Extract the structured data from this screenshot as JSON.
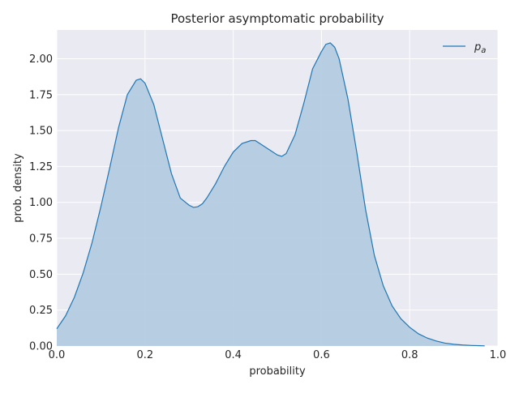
{
  "chart_data": {
    "type": "area",
    "title": "Posterior asymptomatic probability",
    "xlabel": "probability",
    "ylabel": "prob. density",
    "xlim": [
      0.0,
      1.0
    ],
    "ylim": [
      0.0,
      2.2
    ],
    "xticks": [
      0.0,
      0.2,
      0.4,
      0.6,
      0.8,
      1.0
    ],
    "xtick_labels": [
      "0.0",
      "0.2",
      "0.4",
      "0.6",
      "0.8",
      "1.0"
    ],
    "yticks": [
      0.0,
      0.25,
      0.5,
      0.75,
      1.0,
      1.25,
      1.5,
      1.75,
      2.0
    ],
    "ytick_labels": [
      "0.00",
      "0.25",
      "0.50",
      "0.75",
      "1.00",
      "1.25",
      "1.50",
      "1.75",
      "2.00"
    ],
    "grid": true,
    "legend_position": "top-right",
    "colors": {
      "line": "#1f77b4",
      "fill": "#b4cbe0",
      "background": "#eaeaf2",
      "grid": "#ffffff"
    },
    "series": [
      {
        "name": "p_a",
        "legend_label": "p",
        "legend_subscript": "a",
        "x": [
          0.0,
          0.02,
          0.04,
          0.06,
          0.08,
          0.1,
          0.12,
          0.14,
          0.16,
          0.18,
          0.19,
          0.2,
          0.22,
          0.24,
          0.26,
          0.28,
          0.3,
          0.31,
          0.32,
          0.33,
          0.34,
          0.36,
          0.38,
          0.4,
          0.42,
          0.44,
          0.45,
          0.46,
          0.48,
          0.5,
          0.51,
          0.52,
          0.54,
          0.56,
          0.58,
          0.6,
          0.61,
          0.62,
          0.63,
          0.64,
          0.66,
          0.68,
          0.7,
          0.72,
          0.74,
          0.76,
          0.78,
          0.8,
          0.82,
          0.84,
          0.86,
          0.88,
          0.9,
          0.92,
          0.94,
          0.96,
          0.97
        ],
        "y": [
          0.12,
          0.21,
          0.34,
          0.51,
          0.72,
          0.97,
          1.24,
          1.52,
          1.75,
          1.85,
          1.86,
          1.83,
          1.68,
          1.44,
          1.2,
          1.03,
          0.98,
          0.965,
          0.97,
          0.99,
          1.03,
          1.13,
          1.25,
          1.35,
          1.41,
          1.43,
          1.43,
          1.41,
          1.37,
          1.33,
          1.32,
          1.34,
          1.47,
          1.69,
          1.93,
          2.05,
          2.1,
          2.11,
          2.08,
          2.0,
          1.72,
          1.35,
          0.95,
          0.63,
          0.42,
          0.28,
          0.19,
          0.13,
          0.085,
          0.055,
          0.035,
          0.02,
          0.012,
          0.007,
          0.004,
          0.002,
          0.001
        ]
      }
    ]
  }
}
